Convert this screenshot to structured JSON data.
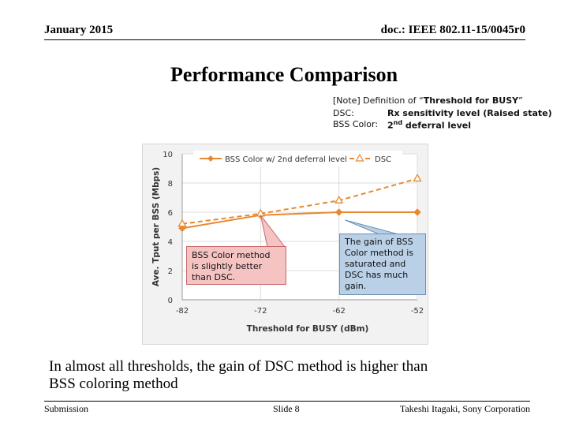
{
  "header": {
    "date": "January 2015",
    "doc_id": "doc.: IEEE 802.11-15/0045r0"
  },
  "title": "Performance Comparison",
  "note": {
    "line1_prefix": "[Note] Definition of “",
    "line1_bold": "Threshold for BUSY",
    "line1_suffix": "”",
    "dsc_label": "DSC:",
    "dsc_value": "Rx sensitivity level (Raised state)",
    "bss_label": "BSS Color:",
    "bss_value_prefix": "2",
    "bss_value_sup": "nd",
    "bss_value_suffix": " deferral level"
  },
  "chart_data": {
    "type": "line",
    "title": "",
    "xlabel": "Threshold for BUSY (dBm)",
    "ylabel": "Ave. Tput per BSS (Mbps)",
    "x_ticks": [
      -82,
      -72,
      -62,
      -52
    ],
    "y_ticks": [
      0,
      2,
      4,
      6,
      8,
      10
    ],
    "xlim": [
      -82,
      -52
    ],
    "ylim": [
      0,
      10
    ],
    "grid": true,
    "legend_position": "top",
    "series": [
      {
        "name": "BSS Color w/ 2nd deferral level",
        "color": "#e8892f",
        "style": "solid",
        "marker": "diamond",
        "x": [
          -82,
          -72,
          -62,
          -52
        ],
        "y": [
          4.9,
          5.8,
          6.0,
          6.0
        ]
      },
      {
        "name": "DSC",
        "color": "#e8892f",
        "style": "dashed",
        "marker": "triangle",
        "x": [
          -82,
          -72,
          -62,
          -52
        ],
        "y": [
          5.2,
          5.9,
          6.8,
          8.3
        ]
      }
    ]
  },
  "callouts": {
    "left": [
      "BSS Color method",
      "is slightly better",
      "than DSC."
    ],
    "right": [
      "The gain of BSS",
      "Color method is",
      "saturated and",
      "DSC has much",
      "gain."
    ]
  },
  "conclusion": {
    "line1": "In almost all thresholds, the gain of DSC method is higher than",
    "line2": "BSS coloring method"
  },
  "footer": {
    "left": "Submission",
    "center": "Slide 8",
    "right": "Takeshi Itagaki, Sony Corporation"
  }
}
